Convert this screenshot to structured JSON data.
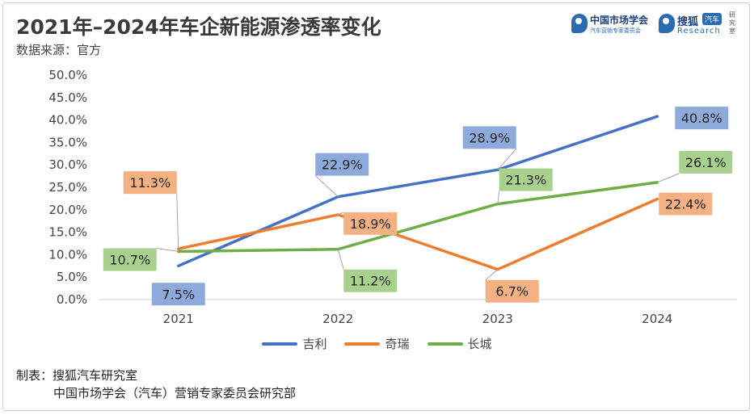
{
  "title": "2021年–2024年车企新能源渗透率变化",
  "source": "数据来源：官方",
  "logos": {
    "logo_a_name": "中国市场学会",
    "logo_a_sub": "汽车营销专家委员会",
    "logo_b_name": "搜狐",
    "logo_b_tag": "汽车",
    "logo_b_sub": "Research",
    "logo_b_side": "研究室"
  },
  "footer": {
    "label": "制表：搜狐汽车研究室",
    "org": "中国市场学会（汽车）营销专家委员会研究部"
  },
  "chart_data": {
    "type": "line",
    "categories": [
      "2021",
      "2022",
      "2023",
      "2024"
    ],
    "ylim": [
      0,
      50
    ],
    "yticks": [
      "0.0%",
      "5.0%",
      "10.0%",
      "15.0%",
      "20.0%",
      "25.0%",
      "30.0%",
      "35.0%",
      "40.0%",
      "45.0%",
      "50.0%"
    ],
    "grid": false,
    "legend_position": "bottom",
    "series": [
      {
        "name": "吉利",
        "color": "#4472c4",
        "label_bg": "#8eaadb",
        "values": [
          7.5,
          22.9,
          28.9,
          40.8
        ],
        "labels": [
          "7.5%",
          "22.9%",
          "28.9%",
          "40.8%"
        ]
      },
      {
        "name": "奇瑞",
        "color": "#ed7d31",
        "label_bg": "#f4b183",
        "values": [
          11.3,
          18.9,
          6.7,
          22.4
        ],
        "labels": [
          "11.3%",
          "18.9%",
          "6.7%",
          "22.4%"
        ]
      },
      {
        "name": "长城",
        "color": "#70ad47",
        "label_bg": "#a9d18e",
        "values": [
          10.7,
          11.2,
          21.3,
          26.1
        ],
        "labels": [
          "10.7%",
          "11.2%",
          "21.3%",
          "26.1%"
        ]
      }
    ]
  }
}
